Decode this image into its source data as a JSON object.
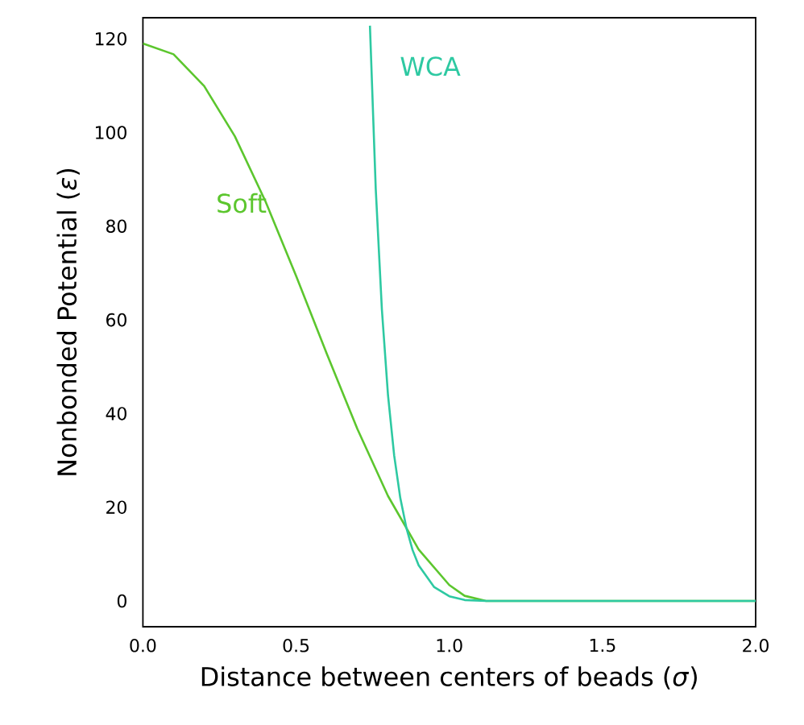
{
  "chart_data": {
    "type": "line",
    "xlabel": "Distance between centers of beads (*σ*)",
    "ylabel": "Nonbonded Potential (*ε*)",
    "xlim": [
      0,
      2
    ],
    "ylim": [
      -5.5,
      124.5
    ],
    "xticks": [
      {
        "value": 0,
        "label": "0.0"
      },
      0.5,
      {
        "value": 1,
        "label": "1.0"
      },
      1.5,
      {
        "value": 2,
        "label": "2.0"
      }
    ],
    "yticks": [
      0,
      20,
      40,
      60,
      80,
      100,
      120
    ],
    "grid": false,
    "legend": false,
    "marker": "none",
    "line_style": "solid",
    "series": [
      {
        "name": "Soft",
        "color": "#5cc62e",
        "x": [
          0,
          0.1,
          0.2,
          0.3,
          0.4,
          0.5,
          0.6,
          0.7,
          0.8,
          0.9,
          1.0,
          1.05,
          1.12,
          2.0
        ],
        "values": [
          119,
          116.7,
          109.9,
          99.2,
          85.3,
          69.4,
          52.8,
          36.7,
          22.4,
          11.0,
          3.4,
          1.1,
          0,
          0
        ]
      },
      {
        "name": "WCA",
        "color": "#2ec9a2",
        "x": [
          0.741,
          0.76,
          0.78,
          0.8,
          0.82,
          0.84,
          0.86,
          0.88,
          0.9,
          0.95,
          1.0,
          1.05,
          1.12,
          2.0
        ],
        "values": [
          122.8,
          87.9,
          62.2,
          43.9,
          31.1,
          22.0,
          15.6,
          10.9,
          7.6,
          3.0,
          1.0,
          0.2,
          0,
          0
        ]
      }
    ]
  }
}
